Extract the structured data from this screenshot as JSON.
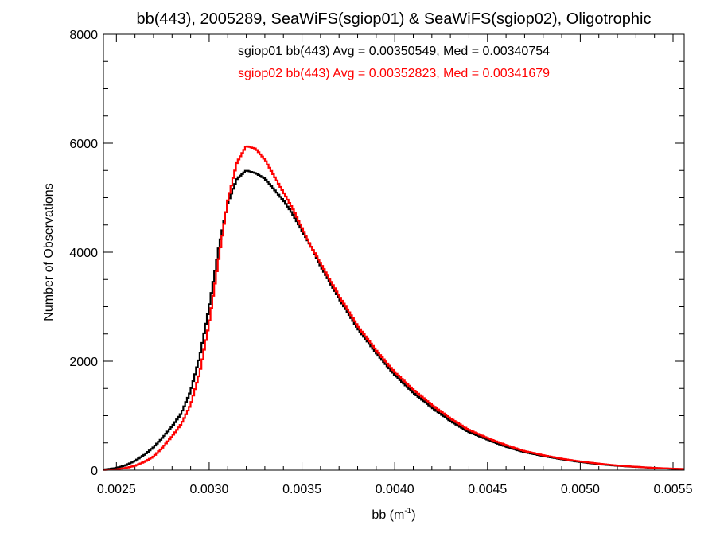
{
  "chart_data": {
    "type": "histogram",
    "title": "bb(443), 2005289, SeaWiFS(sgiop01) & SeaWiFS(sgiop02), Oligotrophic",
    "xlabel": "bb (m",
    "xlabel_sup": "-1",
    "xlabel_close": ")",
    "ylabel": "Number of Observations",
    "xlim": [
      0.00243,
      0.00556
    ],
    "ylim": [
      0,
      8000
    ],
    "x_ticks": [
      0.0025,
      0.003,
      0.0035,
      0.004,
      0.0045,
      0.005,
      0.0055
    ],
    "x_tick_labels": [
      "0.0025",
      "0.0030",
      "0.0035",
      "0.0040",
      "0.0045",
      "0.0050",
      "0.0055"
    ],
    "y_ticks": [
      0,
      2000,
      4000,
      6000,
      8000
    ],
    "y_tick_labels": [
      "0",
      "2000",
      "4000",
      "6000",
      "8000"
    ],
    "x_minor_step": 0.0001,
    "y_minor_step": 500,
    "grid": false,
    "series": [
      {
        "name": "sgiop01",
        "color": "#000000",
        "label": "sgiop01 bb(443) Avg = 0.00350549, Med = 0.00340754",
        "x": [
          0.00243,
          0.0025,
          0.00255,
          0.0026,
          0.00265,
          0.0027,
          0.00275,
          0.0028,
          0.00285,
          0.0029,
          0.00295,
          0.003,
          0.00305,
          0.0031,
          0.00315,
          0.0032,
          0.00325,
          0.0033,
          0.00335,
          0.0034,
          0.00345,
          0.0035,
          0.00355,
          0.0036,
          0.0037,
          0.0038,
          0.0039,
          0.004,
          0.0041,
          0.0042,
          0.0043,
          0.0044,
          0.0045,
          0.0046,
          0.0047,
          0.0048,
          0.0049,
          0.005,
          0.0051,
          0.0052,
          0.0053,
          0.0054,
          0.0055,
          0.00556
        ],
        "y": [
          10,
          40,
          90,
          170,
          280,
          420,
          600,
          800,
          1050,
          1450,
          2100,
          3000,
          4050,
          4900,
          5350,
          5500,
          5450,
          5350,
          5150,
          4950,
          4700,
          4400,
          4100,
          3750,
          3150,
          2600,
          2150,
          1750,
          1420,
          1150,
          900,
          700,
          560,
          430,
          330,
          260,
          200,
          150,
          110,
          80,
          60,
          40,
          25,
          20
        ]
      },
      {
        "name": "sgiop02",
        "color": "#ff0000",
        "label": "sgiop02 bb(443) Avg = 0.00352823, Med = 0.00341679",
        "x": [
          0.00243,
          0.0025,
          0.00255,
          0.0026,
          0.00265,
          0.0027,
          0.00275,
          0.0028,
          0.00285,
          0.0029,
          0.00295,
          0.003,
          0.00305,
          0.0031,
          0.00315,
          0.0032,
          0.00325,
          0.0033,
          0.00335,
          0.0034,
          0.00345,
          0.0035,
          0.00355,
          0.0036,
          0.0037,
          0.0038,
          0.0039,
          0.004,
          0.0041,
          0.0042,
          0.0043,
          0.0044,
          0.0045,
          0.0046,
          0.0047,
          0.0048,
          0.0049,
          0.005,
          0.0051,
          0.0052,
          0.0053,
          0.0054,
          0.0055,
          0.00556
        ],
        "y": [
          5,
          15,
          40,
          80,
          150,
          250,
          420,
          620,
          850,
          1200,
          1800,
          2700,
          3850,
          4950,
          5650,
          5950,
          5900,
          5700,
          5400,
          5100,
          4800,
          4450,
          4100,
          3800,
          3200,
          2650,
          2200,
          1800,
          1480,
          1200,
          950,
          740,
          590,
          460,
          350,
          275,
          210,
          160,
          120,
          85,
          62,
          42,
          28,
          22
        ]
      }
    ]
  }
}
